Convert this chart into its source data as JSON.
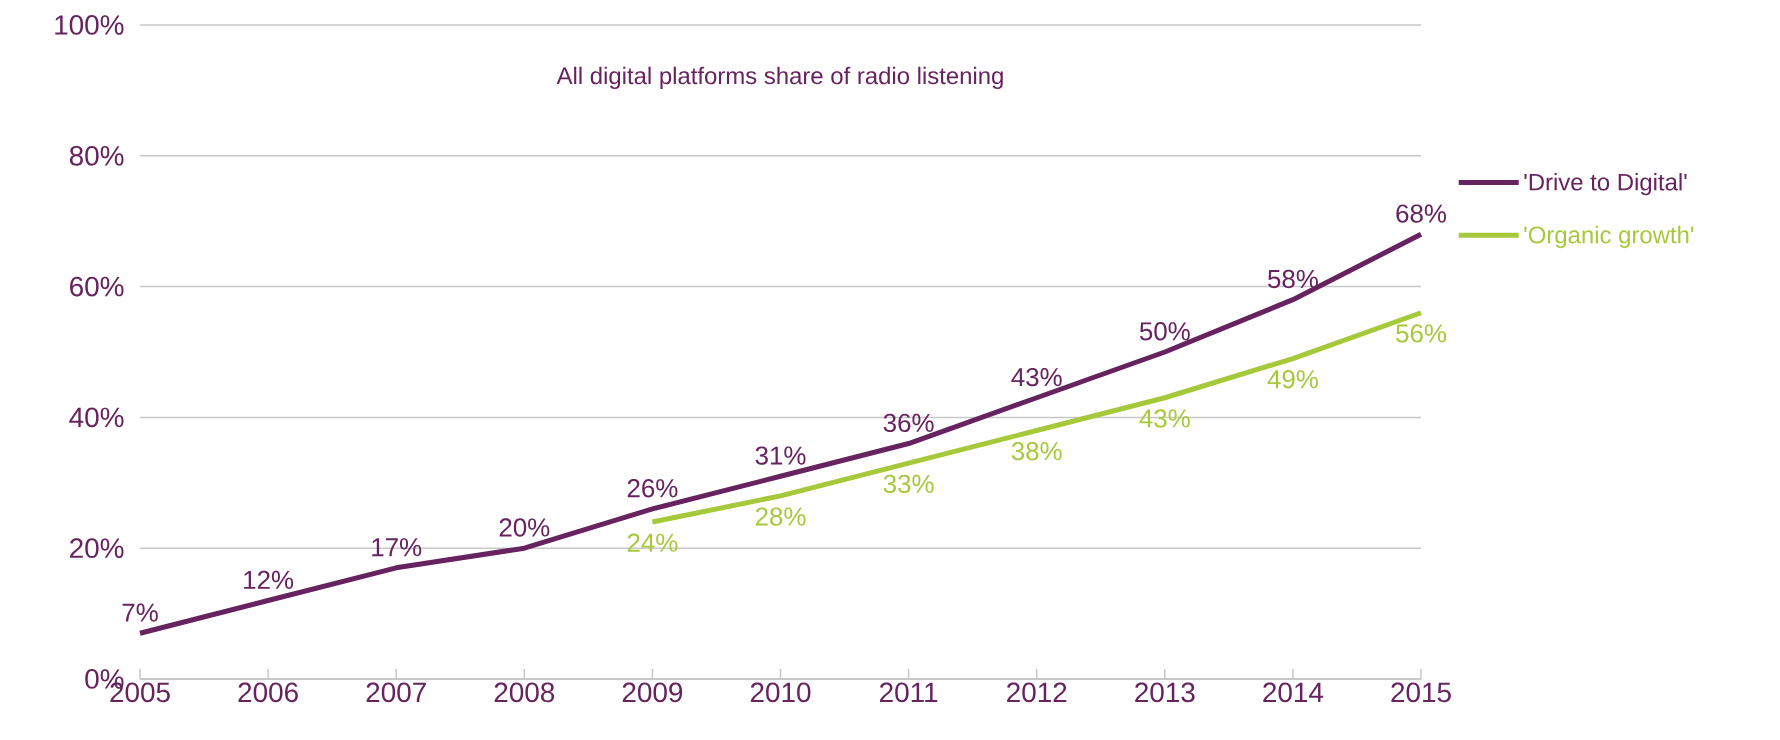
{
  "chart_data": {
    "type": "line",
    "title": "All digital platforms share of radio listening",
    "categories": [
      "2005",
      "2006",
      "2007",
      "2008",
      "2009",
      "2010",
      "2011",
      "2012",
      "2013",
      "2014",
      "2015"
    ],
    "series": [
      {
        "name": "'Drive to Digital'",
        "color": "#66235f",
        "values": [
          7,
          12,
          17,
          20,
          26,
          31,
          36,
          43,
          50,
          58,
          68
        ],
        "value_labels": [
          "7%",
          "12%",
          "17%",
          "20%",
          "26%",
          "31%",
          "36%",
          "43%",
          "50%",
          "58%",
          "68%"
        ]
      },
      {
        "name": "'Organic growth'",
        "color": "#a5c93b",
        "values": [
          null,
          null,
          null,
          null,
          24,
          28,
          33,
          38,
          43,
          49,
          56
        ],
        "value_labels": [
          null,
          null,
          null,
          null,
          "24%",
          "28%",
          "33%",
          "38%",
          "43%",
          "49%",
          "56%"
        ]
      }
    ],
    "ylim": [
      0,
      100
    ],
    "yticks": [
      {
        "value": 0,
        "label": "0%"
      },
      {
        "value": 20,
        "label": "20%"
      },
      {
        "value": 40,
        "label": "40%"
      },
      {
        "value": 60,
        "label": "60%"
      },
      {
        "value": 80,
        "label": "80%"
      },
      {
        "value": 100,
        "label": "100%"
      }
    ],
    "grid": "y",
    "legend": "right",
    "marker": "none",
    "line_style": "solid"
  }
}
